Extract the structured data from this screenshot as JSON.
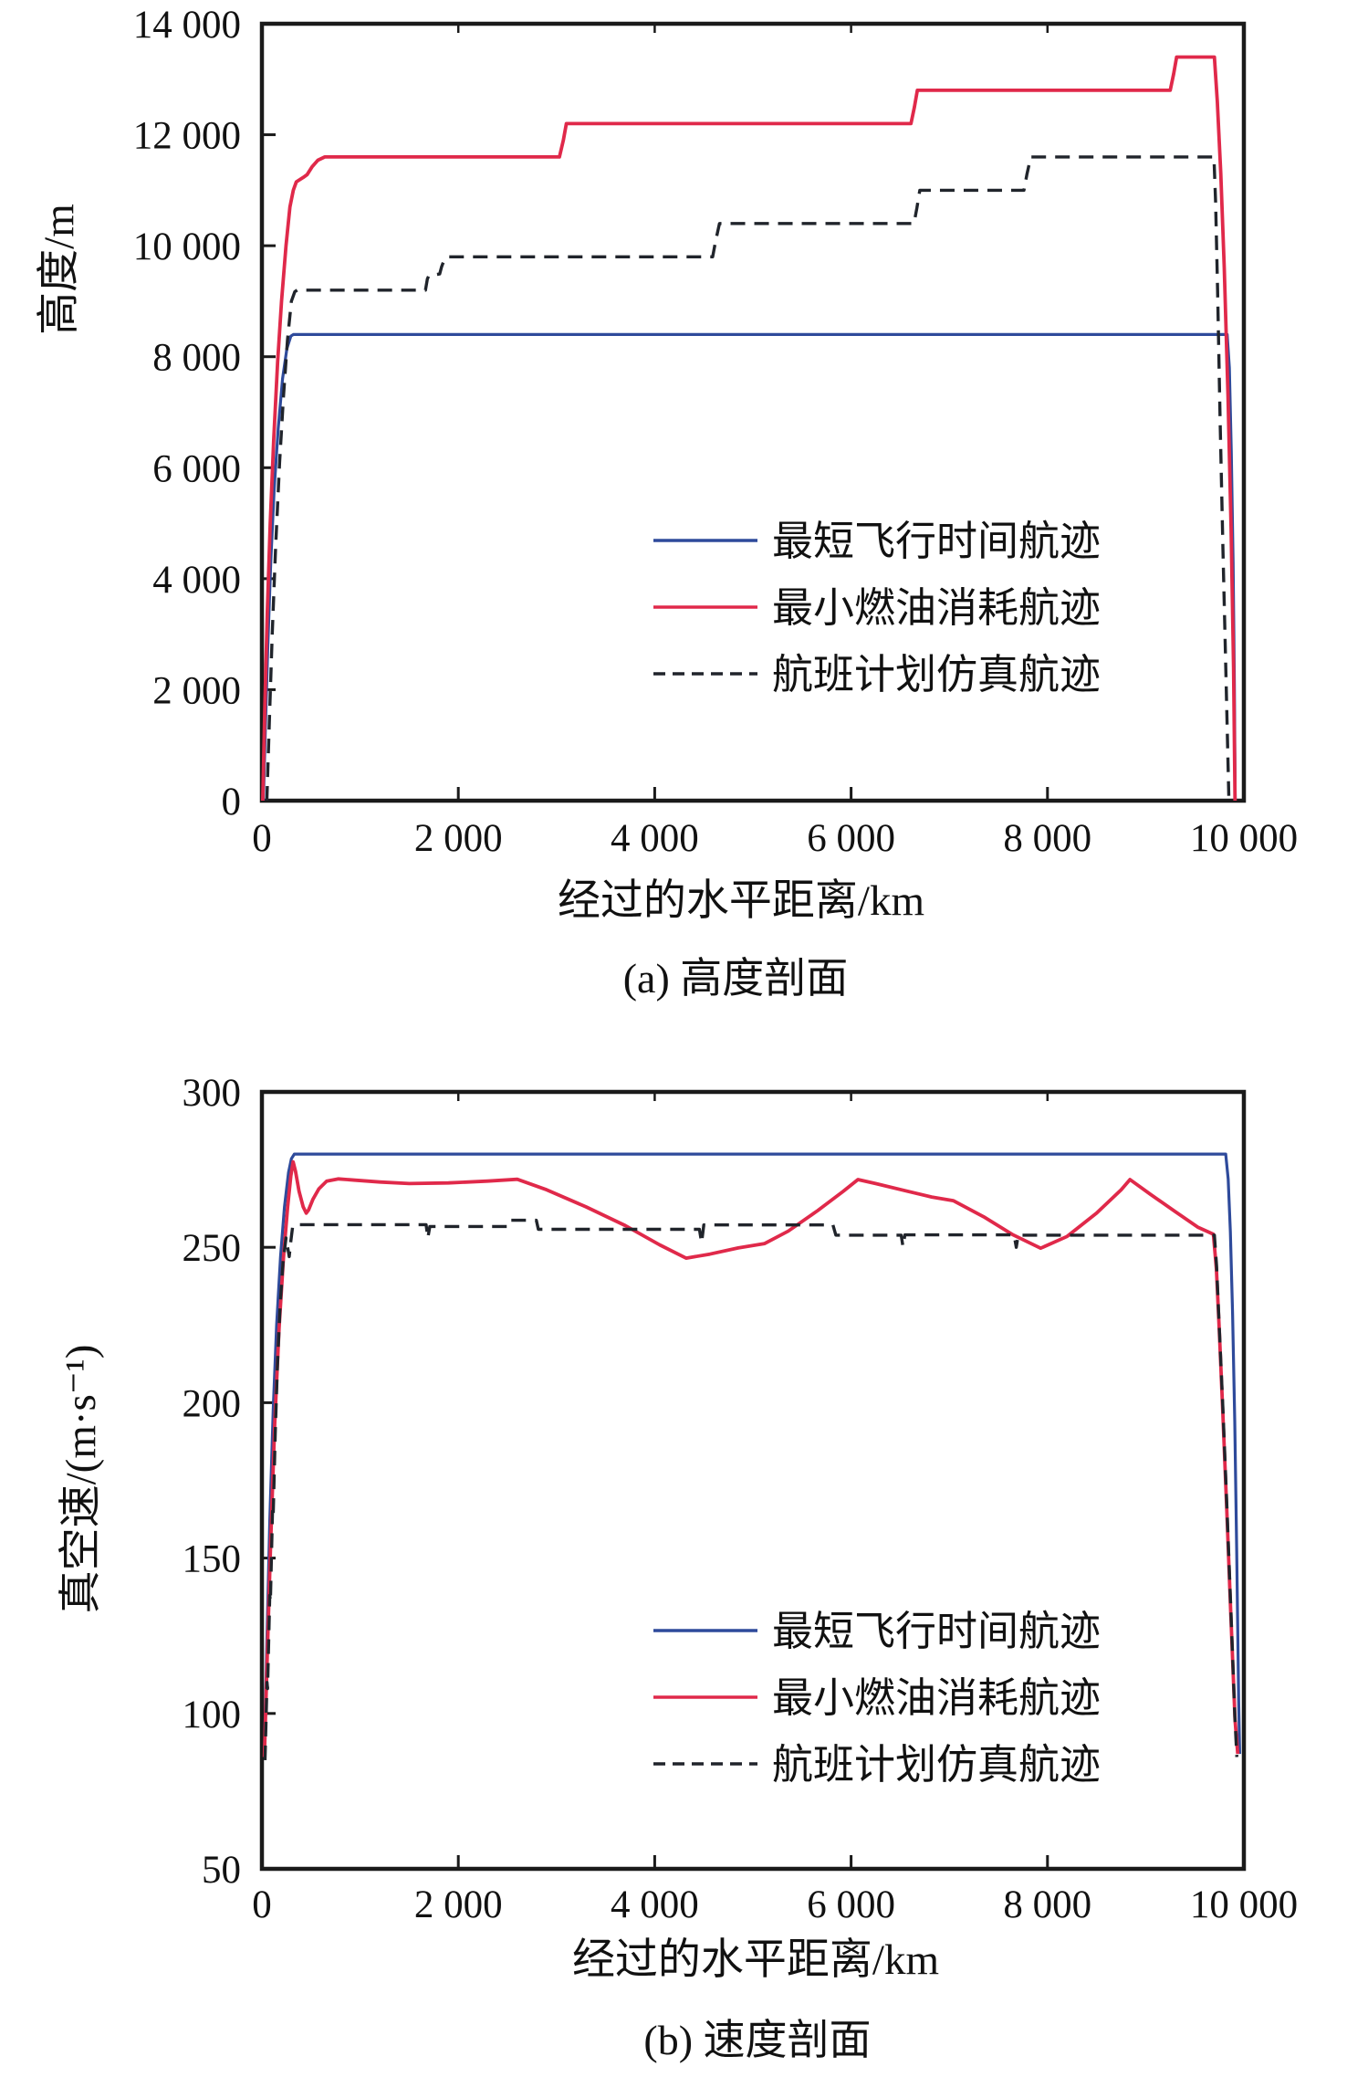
{
  "figure": {
    "background": "#ffffff",
    "frame_color": "#1a1a1a"
  },
  "chart_data": [
    {
      "type": "line",
      "title": "(a) 高度剖面",
      "xlabel": "经过的水平距离/km",
      "ylabel": "高度/m",
      "xlim": [
        0,
        10000
      ],
      "ylim": [
        0,
        14000
      ],
      "grid": false,
      "legend_position": "inside-center-right",
      "x_tick_values": [
        0,
        2000,
        4000,
        6000,
        8000,
        10000
      ],
      "x_tick_labels": [
        "0",
        "2 000",
        "4 000",
        "6 000",
        "8 000",
        "10 000"
      ],
      "y_tick_values": [
        0,
        2000,
        4000,
        6000,
        8000,
        10000,
        12000,
        14000
      ],
      "y_tick_labels": [
        "0",
        "2 000",
        "4 000",
        "6 000",
        "8 000",
        "10 000",
        "12 000",
        "14 000"
      ],
      "series": [
        {
          "name": "最短飞行时间航迹",
          "color": "#2e4a9b",
          "style": "solid",
          "points": [
            [
              15,
              0
            ],
            [
              35,
              1300
            ],
            [
              60,
              2800
            ],
            [
              90,
              4300
            ],
            [
              125,
              5600
            ],
            [
              165,
              6700
            ],
            [
              210,
              7600
            ],
            [
              255,
              8150
            ],
            [
              295,
              8370
            ],
            [
              320,
              8400
            ],
            [
              9830,
              8400
            ],
            [
              9852,
              7800
            ],
            [
              9872,
              6300
            ],
            [
              9890,
              4300
            ],
            [
              9903,
              2100
            ],
            [
              9912,
              0
            ]
          ]
        },
        {
          "name": "最小燃油消耗航迹",
          "color": "#e0294a",
          "style": "solid",
          "points": [
            [
              8,
              0
            ],
            [
              30,
              1700
            ],
            [
              55,
              3400
            ],
            [
              85,
              5000
            ],
            [
              120,
              6500
            ],
            [
              160,
              7900
            ],
            [
              200,
              9000
            ],
            [
              245,
              10000
            ],
            [
              285,
              10700
            ],
            [
              320,
              11000
            ],
            [
              350,
              11150
            ],
            [
              420,
              11230
            ],
            [
              460,
              11280
            ],
            [
              510,
              11420
            ],
            [
              570,
              11540
            ],
            [
              640,
              11600
            ],
            [
              3030,
              11600
            ],
            [
              3070,
              11900
            ],
            [
              3100,
              12200
            ],
            [
              6610,
              12200
            ],
            [
              6645,
              12500
            ],
            [
              6675,
              12800
            ],
            [
              9250,
              12800
            ],
            [
              9285,
              13100
            ],
            [
              9315,
              13400
            ],
            [
              9700,
              13400
            ],
            [
              9730,
              12600
            ],
            [
              9765,
              11300
            ],
            [
              9800,
              9600
            ],
            [
              9838,
              7300
            ],
            [
              9870,
              4900
            ],
            [
              9895,
              2400
            ],
            [
              9910,
              0
            ]
          ]
        },
        {
          "name": "航班计划仿真航迹",
          "color": "#20242b",
          "style": "dashed",
          "points": [
            [
              50,
              0
            ],
            [
              75,
              1400
            ],
            [
              105,
              3000
            ],
            [
              140,
              4600
            ],
            [
              180,
              6100
            ],
            [
              220,
              7300
            ],
            [
              260,
              8300
            ],
            [
              300,
              9000
            ],
            [
              335,
              9170
            ],
            [
              360,
              9200
            ],
            [
              1665,
              9200
            ],
            [
              1685,
              9400
            ],
            [
              1700,
              9460
            ],
            [
              1810,
              9490
            ],
            [
              1830,
              9620
            ],
            [
              1860,
              9760
            ],
            [
              1900,
              9800
            ],
            [
              4590,
              9800
            ],
            [
              4620,
              10080
            ],
            [
              4660,
              10400
            ],
            [
              6640,
              10400
            ],
            [
              6670,
              10680
            ],
            [
              6700,
              11000
            ],
            [
              7760,
              11000
            ],
            [
              7790,
              11280
            ],
            [
              7830,
              11600
            ],
            [
              9695,
              11600
            ],
            [
              9712,
              10800
            ],
            [
              9732,
              9200
            ],
            [
              9757,
              6900
            ],
            [
              9787,
              4500
            ],
            [
              9820,
              2100
            ],
            [
              9848,
              0
            ]
          ]
        }
      ]
    },
    {
      "type": "line",
      "title": "(b) 速度剖面",
      "xlabel": "经过的水平距离/km",
      "ylabel": "真空速/(m·s⁻¹)",
      "xlim": [
        0,
        10000
      ],
      "ylim": [
        50,
        300
      ],
      "grid": false,
      "legend_position": "inside-center-right",
      "x_tick_values": [
        0,
        2000,
        4000,
        6000,
        8000,
        10000
      ],
      "x_tick_labels": [
        "0",
        "2 000",
        "4 000",
        "6 000",
        "8 000",
        "10 000"
      ],
      "y_tick_values": [
        50,
        100,
        150,
        200,
        250,
        300
      ],
      "y_tick_labels": [
        "50",
        "100",
        "150",
        "200",
        "250",
        "300"
      ],
      "series": [
        {
          "name": "最短飞行时间航迹",
          "color": "#2e4a9b",
          "style": "solid",
          "points": [
            [
              25,
              87
            ],
            [
              50,
              123
            ],
            [
              80,
              162
            ],
            [
              115,
              198
            ],
            [
              150,
              225
            ],
            [
              190,
              247
            ],
            [
              230,
              263
            ],
            [
              270,
              274
            ],
            [
              300,
              278.5
            ],
            [
              330,
              280
            ],
            [
              9815,
              280
            ],
            [
              9840,
              272
            ],
            [
              9862,
              255
            ],
            [
              9885,
              229
            ],
            [
              9907,
              194
            ],
            [
              9927,
              153
            ],
            [
              9947,
              104
            ],
            [
              9957,
              87
            ]
          ]
        },
        {
          "name": "最小燃油消耗航迹",
          "color": "#e0294a",
          "style": "solid",
          "points": [
            [
              25,
              86
            ],
            [
              55,
              119
            ],
            [
              90,
              156
            ],
            [
              130,
              193
            ],
            [
              175,
              224
            ],
            [
              220,
              247
            ],
            [
              262,
              263
            ],
            [
              295,
              273
            ],
            [
              318,
              277.5
            ],
            [
              342,
              274.5
            ],
            [
              378,
              268
            ],
            [
              420,
              263
            ],
            [
              452,
              261
            ],
            [
              475,
              262
            ],
            [
              520,
              265.5
            ],
            [
              580,
              268.8
            ],
            [
              660,
              271.3
            ],
            [
              780,
              272
            ],
            [
              950,
              271.6
            ],
            [
              1200,
              271
            ],
            [
              1500,
              270.5
            ],
            [
              1900,
              270.7
            ],
            [
              2300,
              271.3
            ],
            [
              2600,
              271.9
            ],
            [
              2900,
              268.5
            ],
            [
              3300,
              263
            ],
            [
              3700,
              257
            ],
            [
              4050,
              250.8
            ],
            [
              4320,
              246.5
            ],
            [
              4560,
              247.8
            ],
            [
              4850,
              249.8
            ],
            [
              5120,
              251.2
            ],
            [
              5360,
              255.2
            ],
            [
              5660,
              261.8
            ],
            [
              5920,
              268
            ],
            [
              6070,
              271.8
            ],
            [
              6250,
              270.5
            ],
            [
              6550,
              268.2
            ],
            [
              6820,
              266.2
            ],
            [
              7040,
              265
            ],
            [
              7350,
              259.8
            ],
            [
              7650,
              254
            ],
            [
              7930,
              249.7
            ],
            [
              8200,
              253.5
            ],
            [
              8500,
              261
            ],
            [
              8750,
              268.5
            ],
            [
              8840,
              271.8
            ],
            [
              9050,
              267
            ],
            [
              9300,
              261.5
            ],
            [
              9530,
              256.5
            ],
            [
              9690,
              254.2
            ],
            [
              9720,
              243
            ],
            [
              9750,
              223
            ],
            [
              9785,
              197
            ],
            [
              9825,
              166
            ],
            [
              9868,
              131
            ],
            [
              9910,
              98
            ],
            [
              9938,
              87
            ]
          ]
        },
        {
          "name": "航班计划仿真航迹",
          "color": "#20242b",
          "style": "dashed",
          "points": [
            [
              32,
              85
            ],
            [
              52,
              110
            ],
            [
              58,
              108
            ],
            [
              80,
              138
            ],
            [
              86,
              136
            ],
            [
              108,
              165
            ],
            [
              114,
              163
            ],
            [
              136,
              190
            ],
            [
              158,
              212
            ],
            [
              185,
              231
            ],
            [
              215,
              245
            ],
            [
              245,
              253
            ],
            [
              262,
              250
            ],
            [
              278,
              247
            ],
            [
              295,
              252
            ],
            [
              312,
              256.5
            ],
            [
              335,
              257.3
            ],
            [
              1672,
              257.3
            ],
            [
              1690,
              253
            ],
            [
              1710,
              256.7
            ],
            [
              2505,
              256.7
            ],
            [
              2525,
              258.7
            ],
            [
              2795,
              258.7
            ],
            [
              2815,
              255.8
            ],
            [
              4455,
              255.8
            ],
            [
              4478,
              251.5
            ],
            [
              4500,
              257.2
            ],
            [
              5815,
              257.2
            ],
            [
              5845,
              253.9
            ],
            [
              6510,
              253.9
            ],
            [
              6528,
              250.3
            ],
            [
              6548,
              254
            ],
            [
              7660,
              254
            ],
            [
              7682,
              250
            ],
            [
              7702,
              253.9
            ],
            [
              9700,
              253.9
            ],
            [
              9722,
              244
            ],
            [
              9750,
              224
            ],
            [
              9785,
              199
            ],
            [
              9825,
              168
            ],
            [
              9868,
              133
            ],
            [
              9908,
              99
            ],
            [
              9928,
              86
            ]
          ]
        }
      ]
    }
  ]
}
